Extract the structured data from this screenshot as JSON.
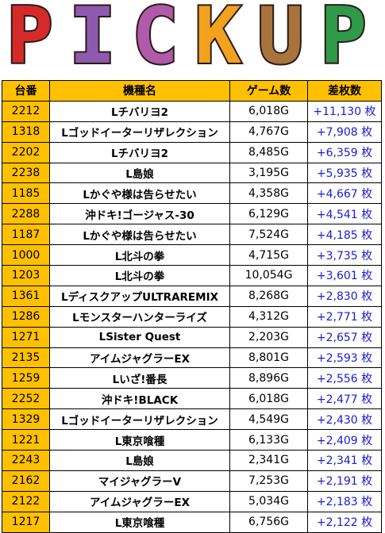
{
  "header": {
    "title_letters": [
      "P",
      "I",
      "C",
      "K",
      "U",
      "P"
    ]
  },
  "table": {
    "columns": [
      "台番",
      "機種名",
      "ゲーム数",
      "差枚数"
    ],
    "rows": [
      [
        "2212",
        "Lチバリヨ2",
        "6,018G",
        "+11,130 枚"
      ],
      [
        "1318",
        "Lゴッドイーターリザレクション",
        "4,767G",
        "+7,908 枚"
      ],
      [
        "2202",
        "Lチバリヨ2",
        "8,485G",
        "+6,359 枚"
      ],
      [
        "2238",
        "L島娘",
        "3,195G",
        "+5,935 枚"
      ],
      [
        "1185",
        "Lかぐや様は告らせたい",
        "4,358G",
        "+4,667 枚"
      ],
      [
        "2288",
        "沖ドキ!ゴージャス-30",
        "6,129G",
        "+4,541 枚"
      ],
      [
        "1187",
        "Lかぐや様は告らせたい",
        "7,524G",
        "+4,185 枚"
      ],
      [
        "1000",
        "L北斗の拳",
        "4,715G",
        "+3,735 枚"
      ],
      [
        "1203",
        "L北斗の拳",
        "10,054G",
        "+3,601 枚"
      ],
      [
        "1361",
        "LディスクアップULTRAREMIX",
        "8,268G",
        "+2,830 枚"
      ],
      [
        "1286",
        "Lモンスターハンターライズ",
        "4,312G",
        "+2,771 枚"
      ],
      [
        "1271",
        "LSister Quest",
        "2,203G",
        "+2,657 枚"
      ],
      [
        "2135",
        "アイムジャグラーEX",
        "8,801G",
        "+2,593 枚"
      ],
      [
        "1259",
        "Lいざ!番長",
        "8,896G",
        "+2,556 枚"
      ],
      [
        "2252",
        "沖ドキ!BLACK",
        "6,018G",
        "+2,477 枚"
      ],
      [
        "1329",
        "Lゴッドイーターリザレクション",
        "4,549G",
        "+2,430 枚"
      ],
      [
        "1221",
        "L東京喰種",
        "6,133G",
        "+2,409 枚"
      ],
      [
        "2243",
        "L島娘",
        "2,341G",
        "+2,341 枚"
      ],
      [
        "2162",
        "マイジャグラーV",
        "7,253G",
        "+2,191 枚"
      ],
      [
        "2122",
        "アイムジャグラーEX",
        "5,034G",
        "+2,183 枚"
      ],
      [
        "1217",
        "L東京喰種",
        "6,756G",
        "+2,122 枚"
      ]
    ]
  }
}
